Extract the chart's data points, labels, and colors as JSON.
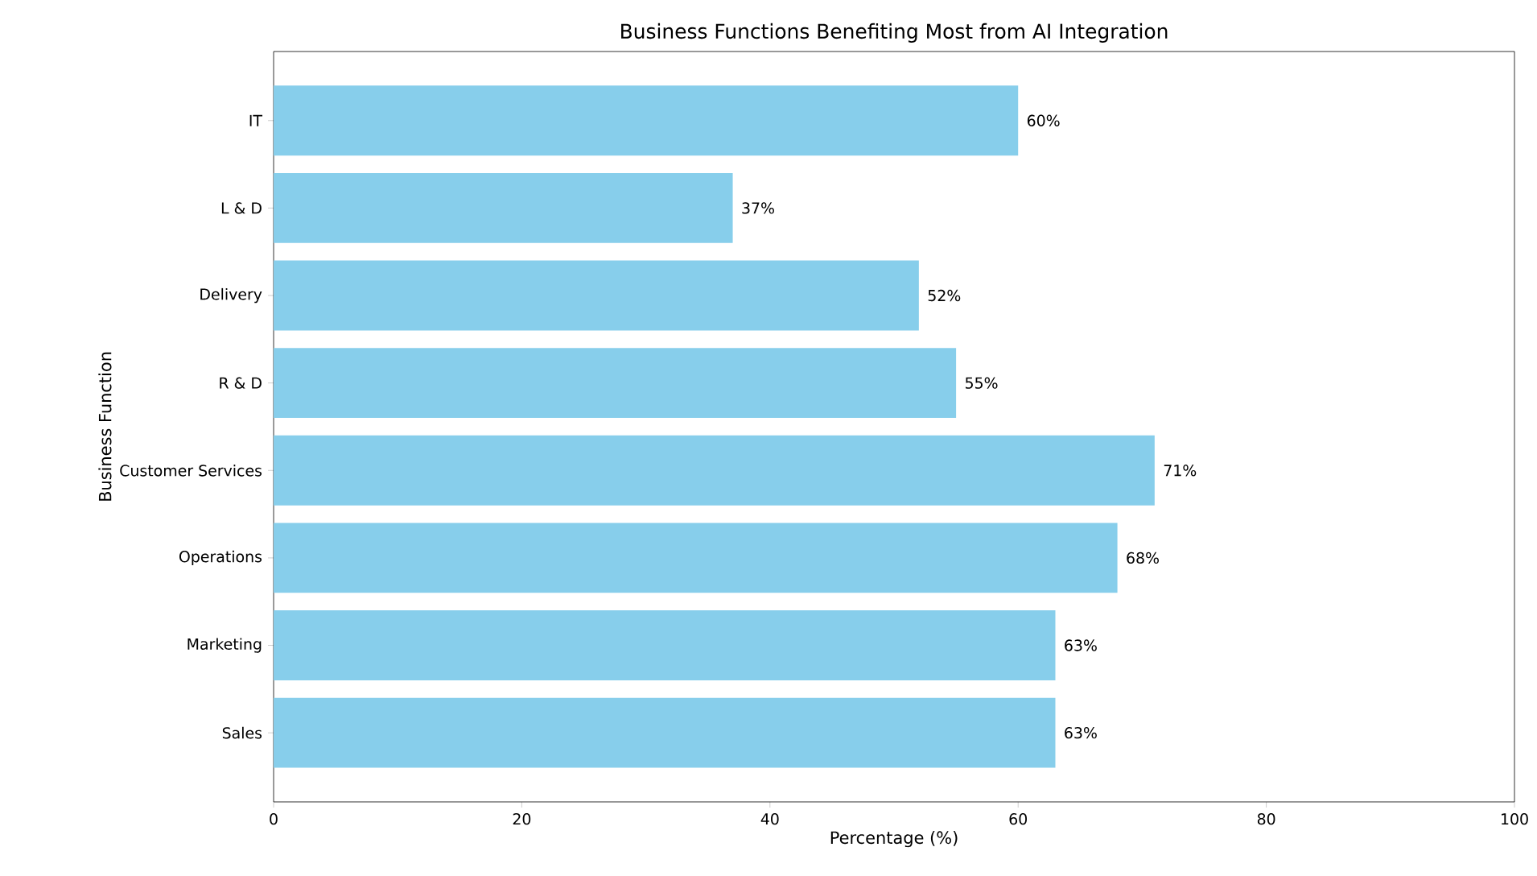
{
  "chart_data": {
    "type": "bar",
    "orientation": "horizontal",
    "title": "Business Functions Benefiting Most from AI Integration",
    "xlabel": "Percentage (%)",
    "ylabel": "Business Function",
    "categories": [
      "IT",
      "L & D",
      "Delivery",
      "R & D",
      "Customer Services",
      "Operations",
      "Marketing",
      "Sales"
    ],
    "values": [
      60,
      37,
      52,
      55,
      71,
      68,
      63,
      63
    ],
    "value_labels": [
      "60%",
      "37%",
      "52%",
      "55%",
      "71%",
      "68%",
      "63%",
      "63%"
    ],
    "color": "#87ceeb",
    "xlim": [
      0,
      100
    ],
    "xticks": [
      0,
      20,
      40,
      60,
      80,
      100
    ],
    "grid": false
  }
}
